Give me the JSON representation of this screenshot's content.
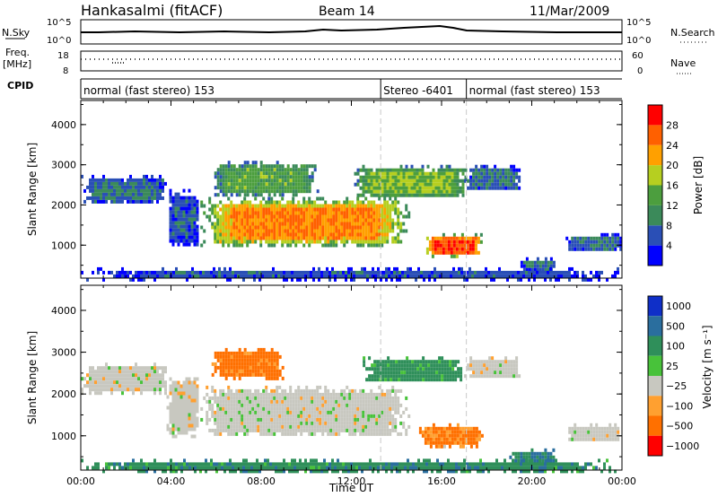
{
  "header": {
    "station": "Hankasalmi (fitACF)",
    "beam": "Beam 14",
    "date": "11/Mar/2009"
  },
  "strips": {
    "nsky_label": "N.Sky",
    "nsky_top_tick": "10^5",
    "nsky_bottom_tick": "10^0",
    "nsearch_label": "N.Search",
    "nsearch_top_tick": "10^5",
    "nsearch_bottom_tick": "10^0",
    "freq_label": "Freq.",
    "freq_unit": "[MHz]",
    "freq_top_tick": "18",
    "freq_bottom_tick": "8",
    "nave_label": "Nave",
    "nave_top_tick": "60",
    "nave_bottom_tick": "0",
    "cpid_label": "CPID"
  },
  "modes": [
    {
      "label": "normal (fast stereo) 153",
      "start_hour": 0,
      "end_hour": 13.3
    },
    {
      "label": "Stereo -6401",
      "start_hour": 13.3,
      "end_hour": 17.1
    },
    {
      "label": "normal (fast stereo) 153",
      "start_hour": 17.1,
      "end_hour": 24
    }
  ],
  "colors": {
    "power_scale": [
      "#0000ff",
      "#2a4fb6",
      "#3b8a5a",
      "#4c9e3e",
      "#b6cf20",
      "#ffa000",
      "#ff6000",
      "#ff0000"
    ],
    "velocity_scale": [
      "#0f2fc8",
      "#2a6e9e",
      "#2f8f5a",
      "#48c23a",
      "#c8c8c0",
      "#ffa030",
      "#ff7000",
      "#ff0000"
    ]
  },
  "chart_data": [
    {
      "type": "heatmap",
      "title": "",
      "ylabel": "Slant Range [km]",
      "xlabel": "",
      "x_ticks": [
        "00:00",
        "04:00",
        "08:00",
        "12:00",
        "16:00",
        "20:00",
        "00:00"
      ],
      "xlim_hours": [
        0,
        24
      ],
      "y_ticks": [
        "1000",
        "2000",
        "3000",
        "4000"
      ],
      "ylim_km": [
        180,
        4600
      ],
      "colorbar_label": "Power [dB]",
      "colorbar_ticks": [
        "4",
        "8",
        "12",
        "16",
        "20",
        "24",
        "28"
      ],
      "colorbar_range": [
        0,
        32
      ],
      "echo_regions": [
        {
          "start_hour": 0.0,
          "end_hour": 3.8,
          "low_km": 2050,
          "high_km": 2750,
          "power_db": 8
        },
        {
          "start_hour": 3.8,
          "end_hour": 5.2,
          "low_km": 1000,
          "high_km": 2400,
          "power_db": 6
        },
        {
          "start_hour": 5.3,
          "end_hour": 14.5,
          "low_km": 1000,
          "high_km": 2200,
          "power_db": 24
        },
        {
          "start_hour": 5.8,
          "end_hour": 10.5,
          "low_km": 2250,
          "high_km": 3100,
          "power_db": 14
        },
        {
          "start_hour": 12.0,
          "end_hour": 17.2,
          "low_km": 2200,
          "high_km": 3000,
          "power_db": 16
        },
        {
          "start_hour": 15.2,
          "end_hour": 17.8,
          "low_km": 750,
          "high_km": 1300,
          "power_db": 28
        },
        {
          "start_hour": 17.0,
          "end_hour": 19.5,
          "low_km": 2400,
          "high_km": 3000,
          "power_db": 8
        },
        {
          "start_hour": 19.5,
          "end_hour": 21.0,
          "low_km": 400,
          "high_km": 700,
          "power_db": 8
        },
        {
          "start_hour": 21.5,
          "end_hour": 24.0,
          "low_km": 900,
          "high_km": 1300,
          "power_db": 8
        },
        {
          "start_hour": 0.0,
          "end_hour": 24.0,
          "low_km": 180,
          "high_km": 450,
          "power_db": 6
        }
      ]
    },
    {
      "type": "heatmap",
      "title": "",
      "ylabel": "Slant Range [km]",
      "xlabel": "Time UT",
      "x_ticks": [
        "00:00",
        "04:00",
        "08:00",
        "12:00",
        "16:00",
        "20:00",
        "00:00"
      ],
      "xlim_hours": [
        0,
        24
      ],
      "y_ticks": [
        "1000",
        "2000",
        "3000",
        "4000"
      ],
      "ylim_km": [
        180,
        4600
      ],
      "colorbar_label": "Velocity",
      "colorbar_unit": "[m s⁻¹]",
      "colorbar_ticks": [
        "1000",
        "500",
        "100",
        "25",
        "−25",
        "−100",
        "−500",
        "−1000"
      ],
      "echo_regions": [
        {
          "start_hour": 0.0,
          "end_hour": 3.8,
          "low_km": 2050,
          "high_km": 2750,
          "velocity": 0
        },
        {
          "start_hour": 3.8,
          "end_hour": 5.2,
          "low_km": 1000,
          "high_km": 2400,
          "velocity": 0
        },
        {
          "start_hour": 5.3,
          "end_hour": 14.5,
          "low_km": 1000,
          "high_km": 2200,
          "velocity": 0
        },
        {
          "start_hour": 5.8,
          "end_hour": 9.0,
          "low_km": 2400,
          "high_km": 3100,
          "velocity": -150
        },
        {
          "start_hour": 12.5,
          "end_hour": 17.0,
          "low_km": 2300,
          "high_km": 2900,
          "velocity": 150
        },
        {
          "start_hour": 15.0,
          "end_hour": 17.8,
          "low_km": 750,
          "high_km": 1300,
          "velocity": -80
        },
        {
          "start_hour": 17.0,
          "end_hour": 19.5,
          "low_km": 2400,
          "high_km": 2900,
          "velocity": 0
        },
        {
          "start_hour": 19.0,
          "end_hour": 21.0,
          "low_km": 400,
          "high_km": 700,
          "velocity": 300
        },
        {
          "start_hour": 21.5,
          "end_hour": 24.0,
          "low_km": 900,
          "high_km": 1300,
          "velocity": 0
        },
        {
          "start_hour": 0.0,
          "end_hour": 24.0,
          "low_km": 180,
          "high_km": 450,
          "velocity": 200
        }
      ]
    }
  ]
}
